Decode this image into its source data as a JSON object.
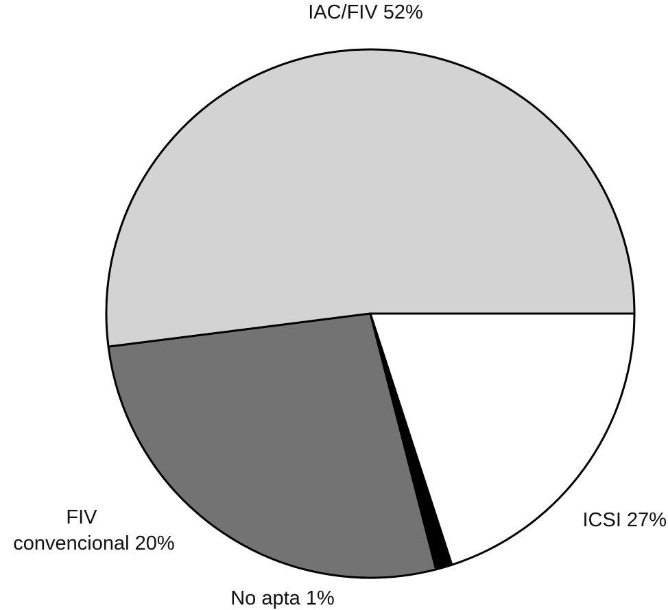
{
  "chart_data": {
    "type": "pie",
    "title": "",
    "slices": [
      {
        "label_lines": [
          "IAC/FIV 52%"
        ],
        "value": 52,
        "color": "#d3d3d3"
      },
      {
        "label_lines": [
          "ICSI 27%"
        ],
        "value": 27,
        "color": "#737373"
      },
      {
        "label_lines": [
          "No apta 1%"
        ],
        "value": 1,
        "color": "#000000"
      },
      {
        "label_lines": [
          "FIV",
          "convencional 20%"
        ],
        "value": 20,
        "color": "#ffffff"
      }
    ],
    "legend": "none"
  }
}
